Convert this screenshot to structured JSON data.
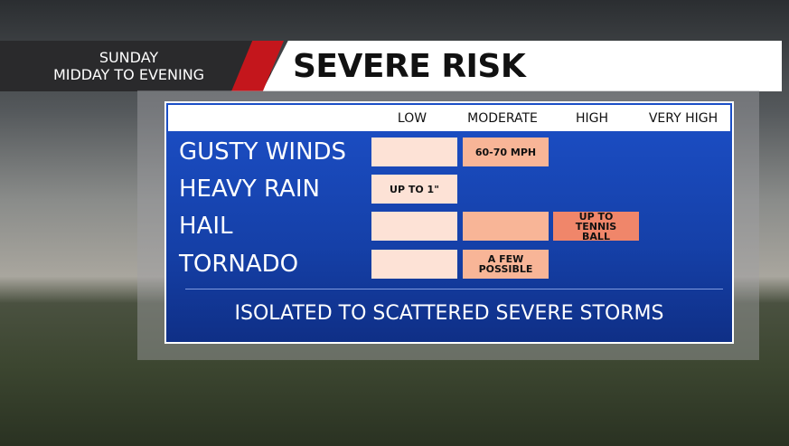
{
  "header": {
    "day": "SUNDAY",
    "time": "MIDDAY TO EVENING",
    "title": "SEVERE RISK"
  },
  "table": {
    "columns": [
      "LOW",
      "MODERATE",
      "HIGH",
      "VERY HIGH"
    ],
    "level_colors": [
      "#fde2d6",
      "#f8b597",
      "#f0866a"
    ],
    "rows": [
      {
        "label": "GUSTY WINDS",
        "levels": 2,
        "text": "60-70 MPH"
      },
      {
        "label": "HEAVY RAIN",
        "levels": 1,
        "text": "UP TO 1\""
      },
      {
        "label": "HAIL",
        "levels": 3,
        "text": "UP TO TENNIS BALL"
      },
      {
        "label": "TORNADO",
        "levels": 2,
        "text": "A FEW POSSIBLE"
      }
    ]
  },
  "footer": "ISOLATED TO SCATTERED SEVERE STORMS"
}
